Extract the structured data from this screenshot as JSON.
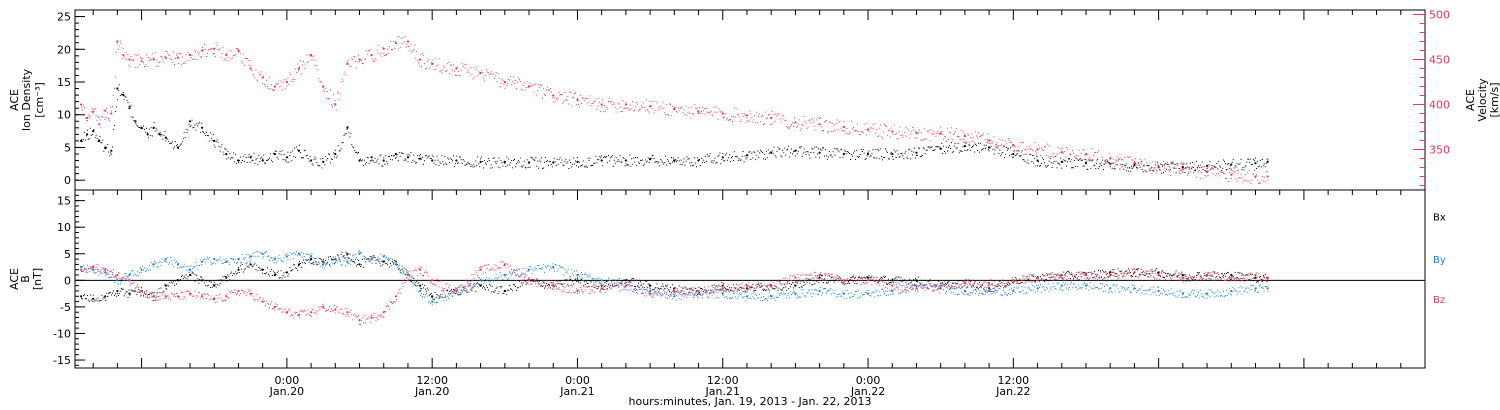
{
  "colors": {
    "density": "#000000",
    "velocity": "#e8355f",
    "bx": "#000000",
    "by": "#1b7fdc",
    "bz": "#e8355f"
  },
  "chart_data": [
    {
      "type": "scatter",
      "ylabel_left": [
        "ACE",
        "Ion Density",
        "[cm⁻³]"
      ],
      "ylabel_right": [
        "ACE",
        "Velocity",
        "[km/s]"
      ],
      "ylim_left": [
        -1.5,
        26
      ],
      "ylim_right": [
        305,
        505
      ],
      "yticks_left": [
        0,
        5,
        10,
        15,
        20,
        25
      ],
      "yticks_right": [
        350,
        400,
        450,
        500
      ],
      "series": [
        {
          "key": "density",
          "axis": "left",
          "x": [
            -17,
            -16.5,
            -16,
            -15.5,
            -15,
            -14.5,
            -14,
            -13.5,
            -13,
            -12.5,
            -12,
            -11.5,
            -11,
            -10.5,
            -10,
            -9,
            -8,
            -7,
            -6,
            -5,
            -4,
            -3,
            -2,
            -1,
            0,
            1,
            2,
            3,
            4,
            5,
            6,
            7,
            8,
            9,
            10,
            11,
            12,
            14,
            16,
            18,
            20,
            22,
            24,
            26,
            28,
            30,
            32,
            34,
            36,
            38,
            40,
            42,
            44,
            46,
            48,
            50,
            52,
            54,
            56,
            58,
            60,
            62,
            64,
            66,
            68,
            70,
            72,
            74,
            76,
            78,
            80,
            81
          ],
          "y": [
            6,
            7,
            7.5,
            6,
            5,
            4.5,
            14,
            13,
            11,
            9,
            8,
            7,
            8,
            7,
            6.5,
            5,
            9,
            8,
            6,
            4,
            3,
            3.5,
            3,
            4,
            3.5,
            4.5,
            3,
            2.8,
            4,
            8,
            3,
            3.5,
            3,
            4,
            3.5,
            3.3,
            3,
            3,
            2.8,
            2.8,
            2.7,
            2.7,
            2.8,
            3,
            3,
            3.2,
            3,
            3,
            3.5,
            3.8,
            4.2,
            4.5,
            4.2,
            4,
            4,
            4,
            4.2,
            4.8,
            5.2,
            5,
            4,
            3,
            2.8,
            2.6,
            2.5,
            2.3,
            2,
            2,
            2.2,
            2.4,
            2.6,
            2.8
          ]
        },
        {
          "key": "velocity",
          "axis": "right",
          "x": [
            -17,
            -16.5,
            -16,
            -15.5,
            -15,
            -14.5,
            -14,
            -13.5,
            -13,
            -12,
            -11,
            -10,
            -9,
            -8,
            -7,
            -6,
            -5,
            -4,
            -3,
            -2,
            -1,
            0,
            1,
            2,
            3,
            4,
            5,
            6,
            7,
            8,
            9,
            10,
            11,
            12,
            14,
            16,
            18,
            20,
            22,
            24,
            26,
            28,
            30,
            32,
            34,
            36,
            38,
            40,
            42,
            44,
            46,
            48,
            50,
            52,
            54,
            56,
            58,
            60,
            62,
            64,
            66,
            68,
            70,
            72,
            74,
            76,
            78,
            80,
            81
          ],
          "y": [
            400,
            385,
            392,
            378,
            393,
            390,
            470,
            455,
            450,
            448,
            450,
            452,
            452,
            455,
            460,
            462,
            455,
            460,
            440,
            430,
            420,
            425,
            440,
            455,
            420,
            400,
            445,
            450,
            455,
            462,
            468,
            470,
            450,
            445,
            440,
            435,
            425,
            420,
            410,
            405,
            400,
            400,
            398,
            395,
            392,
            390,
            388,
            385,
            380,
            378,
            375,
            372,
            370,
            368,
            368,
            365,
            360,
            355,
            350,
            347,
            345,
            340,
            335,
            330,
            328,
            325,
            322,
            320,
            320
          ]
        }
      ]
    },
    {
      "type": "scatter",
      "ylabel_left": [
        "ACE",
        "B",
        "[nT]"
      ],
      "ylim": [
        -16.5,
        17
      ],
      "yticks": [
        -15,
        -10,
        -5,
        0,
        5,
        10,
        15
      ],
      "zero_line": true,
      "series": [
        {
          "key": "bx",
          "label": "Bx",
          "label_y": 12,
          "x": [
            -17,
            -16,
            -15,
            -14,
            -13,
            -12,
            -11,
            -10,
            -9,
            -8,
            -7,
            -6,
            -5,
            -4,
            -3,
            -2,
            -1,
            0,
            1,
            2,
            3,
            4,
            5,
            6,
            7,
            8,
            9,
            10,
            11,
            12,
            14,
            16,
            18,
            20,
            22,
            24,
            26,
            28,
            30,
            32,
            34,
            36,
            38,
            40,
            42,
            44,
            46,
            48,
            50,
            52,
            54,
            56,
            58,
            60,
            62,
            64,
            66,
            68,
            70,
            72,
            74,
            76,
            78,
            80,
            81
          ],
          "y": [
            -3,
            -3.5,
            -3,
            -2,
            -2.5,
            -2,
            -3,
            -1,
            0,
            1,
            0,
            -1,
            0.5,
            2,
            3,
            2,
            1,
            1.5,
            3,
            4,
            3.5,
            4,
            5,
            3,
            4,
            3.5,
            3,
            1,
            -1,
            -3,
            -2,
            -1,
            -2,
            0,
            -1,
            0,
            -1,
            0,
            -1,
            -1.5,
            -2,
            -1,
            -1.5,
            -1,
            -1,
            0.5,
            0,
            0.5,
            0,
            0,
            -1,
            -0.5,
            -1.5,
            0,
            0.5,
            1,
            1,
            1.5,
            1.5,
            1.5,
            1,
            1,
            1,
            0.5,
            0.5
          ]
        },
        {
          "key": "by",
          "label": "By",
          "label_y": 4,
          "x": [
            -17,
            -16,
            -15,
            -14,
            -13,
            -12,
            -11,
            -10,
            -9,
            -8,
            -7,
            -6,
            -5,
            -4,
            -3,
            -2,
            -1,
            0,
            1,
            2,
            3,
            4,
            5,
            6,
            7,
            8,
            9,
            10,
            11,
            12,
            14,
            16,
            18,
            20,
            22,
            24,
            26,
            28,
            30,
            32,
            34,
            36,
            38,
            40,
            42,
            44,
            46,
            48,
            50,
            52,
            54,
            56,
            58,
            60,
            62,
            64,
            66,
            68,
            70,
            72,
            74,
            76,
            78,
            80,
            81
          ],
          "y": [
            2.5,
            2,
            1.5,
            0,
            1,
            2,
            3,
            4,
            3,
            2,
            3.5,
            4,
            3.5,
            4,
            4.5,
            5,
            4,
            4.5,
            5,
            4.5,
            3,
            4,
            3.5,
            5,
            4,
            4.5,
            3,
            1,
            -2,
            -4,
            -2,
            0,
            1,
            2,
            2.5,
            1,
            0,
            -1,
            -2,
            -3,
            -2.5,
            -2.5,
            -3,
            -3,
            -2.5,
            -2,
            -2.5,
            -2.5,
            -2,
            -1,
            -1.5,
            -2,
            -2,
            -2,
            -1.5,
            -1,
            -1,
            -1.5,
            -1.5,
            -2,
            -2.5,
            -2.5,
            -2,
            -1.5,
            -1.5
          ]
        },
        {
          "key": "bz",
          "label": "Bz",
          "label_y": -3.5,
          "x": [
            -17,
            -16,
            -15,
            -14,
            -13,
            -12,
            -11,
            -10,
            -9,
            -8,
            -7,
            -6,
            -5,
            -4,
            -3,
            -2,
            -1,
            0,
            1,
            2,
            3,
            4,
            5,
            6,
            7,
            8,
            9,
            10,
            11,
            12,
            14,
            16,
            18,
            20,
            22,
            24,
            26,
            28,
            30,
            32,
            34,
            36,
            38,
            40,
            42,
            44,
            46,
            48,
            50,
            52,
            54,
            56,
            58,
            60,
            62,
            64,
            66,
            68,
            70,
            72,
            74,
            76,
            78,
            80,
            81
          ],
          "y": [
            2,
            2.5,
            2,
            1,
            0,
            -2,
            -3,
            -3,
            -3,
            -2.5,
            -3,
            -3.5,
            -3,
            -2,
            -2.5,
            -4,
            -5,
            -6,
            -6.5,
            -6,
            -5,
            -5.5,
            -6,
            -7.5,
            -7,
            -6,
            -3,
            1,
            2,
            0,
            -2,
            2,
            3,
            0,
            -1,
            -2,
            -1.5,
            -1,
            -2.5,
            -2,
            -2,
            -1.5,
            -1,
            -1,
            0.5,
            1,
            0,
            0,
            -1,
            -1.5,
            -1,
            -0.5,
            -0.5,
            0,
            0.5,
            1,
            1,
            1,
            1.5,
            1,
            0.5,
            1,
            0.5,
            1,
            0.5
          ]
        }
      ]
    }
  ],
  "x_axis": {
    "xlim": [
      -17.5,
      94
    ],
    "ticks": [
      {
        "hour": 0,
        "time": "0:00",
        "date": "Jan.20"
      },
      {
        "hour": 12,
        "time": "12:00",
        "date": "Jan.20"
      },
      {
        "hour": 24,
        "time": "0:00",
        "date": "Jan.21"
      },
      {
        "hour": 36,
        "time": "12:00",
        "date": "Jan.21"
      },
      {
        "hour": 48,
        "time": "0:00",
        "date": "Jan.22"
      },
      {
        "hour": 60,
        "time": "12:00",
        "date": "Jan.22"
      }
    ],
    "minor_step_hours": 2,
    "label": "hours:minutes, Jan. 19, 2013 - Jan. 22, 2013"
  }
}
